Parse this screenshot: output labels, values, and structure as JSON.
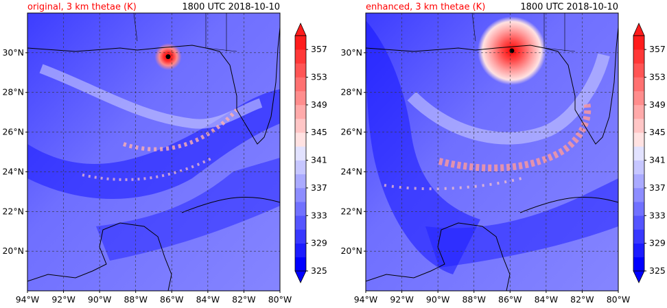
{
  "panels": [
    {
      "id": "original",
      "title_left": "original, 3 km thetae (K)",
      "title_right": "1800 UTC 2018-10-10",
      "storm_center": {
        "lon": -86.2,
        "lat": 29.8
      },
      "warm_core_radius_deg": 0.75
    },
    {
      "id": "enhanced",
      "title_left": "enhanced, 3 km thetae (K)",
      "title_right": "1800 UTC 2018-10-10",
      "storm_center": {
        "lon": -85.9,
        "lat": 30.1
      },
      "warm_core_radius_deg": 1.9
    }
  ],
  "map": {
    "lon_range": [
      -94,
      -80
    ],
    "lat_range": [
      18,
      32
    ],
    "lon_tick_labels": [
      "94°W",
      "92°W",
      "90°W",
      "88°W",
      "86°W",
      "84°W",
      "82°W",
      "80°W"
    ],
    "lon_ticks": [
      -94,
      -92,
      -90,
      -88,
      -86,
      -84,
      -82,
      -80
    ],
    "lat_tick_labels": [
      "20°N",
      "22°N",
      "24°N",
      "26°N",
      "28°N",
      "30°N"
    ],
    "lat_ticks": [
      20,
      22,
      24,
      26,
      28,
      30
    ],
    "gridlines": true
  },
  "colorbar": {
    "levels": [
      325,
      327,
      329,
      331,
      333,
      335,
      337,
      339,
      341,
      343,
      345,
      347,
      349,
      351,
      353,
      355,
      357,
      359
    ],
    "tick_labels": [
      "325",
      "329",
      "333",
      "337",
      "341",
      "345",
      "349",
      "353",
      "357"
    ],
    "colors": [
      "#0000ff",
      "#1c1cff",
      "#3838ff",
      "#5555ff",
      "#7171ff",
      "#8d8dff",
      "#aaaaff",
      "#c6c6ff",
      "#e2e2ff",
      "#ffe2e2",
      "#ffc6c6",
      "#ffaaaa",
      "#ff8d8d",
      "#ff7171",
      "#ff5555",
      "#ff3838",
      "#ff1c1c"
    ],
    "extend": "both"
  }
}
